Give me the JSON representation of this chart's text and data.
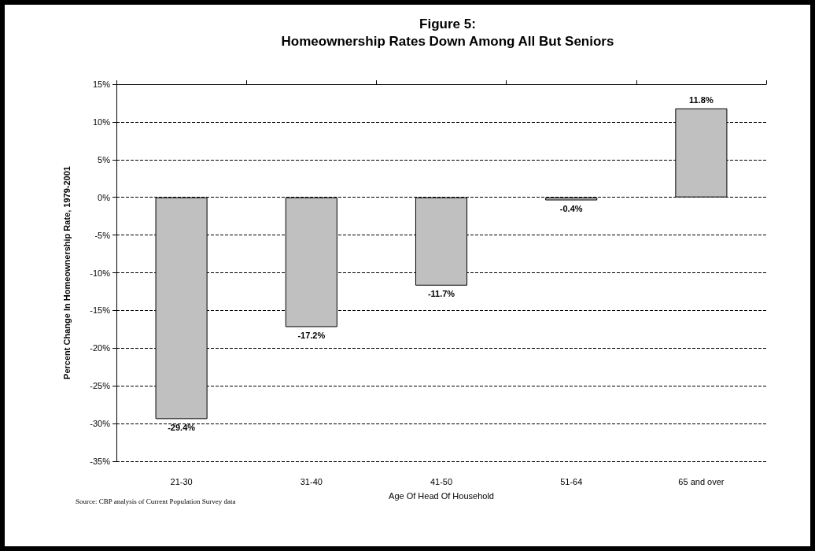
{
  "chart_data": {
    "type": "bar",
    "title": "Figure 5:\nHomeownership Rates Down Among All But Seniors",
    "xlabel": "Age Of Head Of Household",
    "ylabel": "Percent Change In Homeownership Rate, 1979-2001",
    "categories": [
      "21-30",
      "31-40",
      "41-50",
      "51-64",
      "65 and over"
    ],
    "values": [
      -29.4,
      -17.2,
      -11.7,
      -0.4,
      11.8
    ],
    "value_labels": [
      "-29.4%",
      "-17.2%",
      "-11.7%",
      "-0.4%",
      "11.8%"
    ],
    "color": "#c0c0c0",
    "ylim": [
      -35,
      15
    ],
    "yticks": [
      {
        "value": -35,
        "label": "-35%"
      },
      {
        "value": -30,
        "label": "-30%"
      },
      {
        "value": -25,
        "label": "-25%"
      },
      {
        "value": -20,
        "label": "-20%"
      },
      {
        "value": -15,
        "label": "-15%"
      },
      {
        "value": -10,
        "label": "-10%"
      },
      {
        "value": -5,
        "label": "-5%"
      },
      {
        "value": 0,
        "label": "0%"
      },
      {
        "value": 5,
        "label": "5%"
      },
      {
        "value": 10,
        "label": "10%"
      },
      {
        "value": 15,
        "label": "15%"
      }
    ],
    "grid": "y",
    "annotations": [
      "Source: CBP analysis of Current Population Survey data"
    ]
  }
}
